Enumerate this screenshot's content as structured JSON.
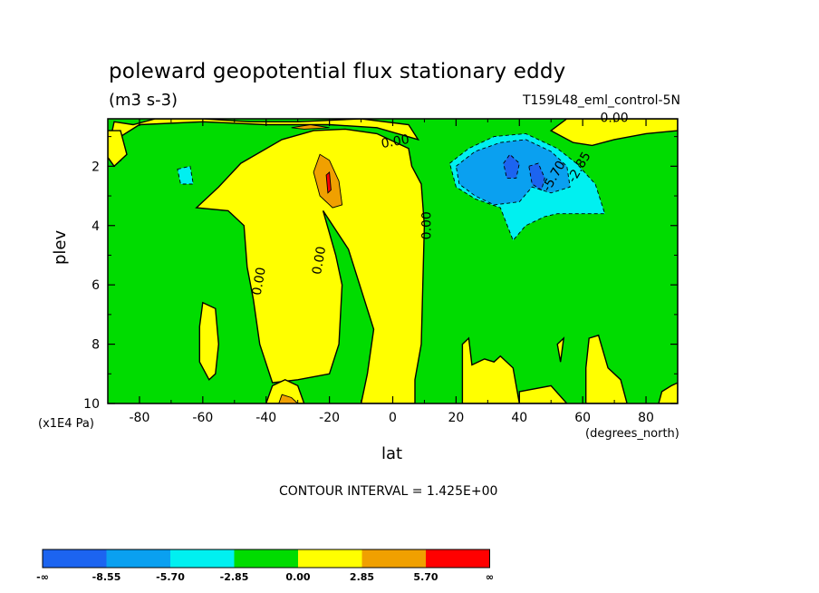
{
  "chart_data": {
    "type": "contour",
    "title": "poleward geopotential flux stationary eddy",
    "units": "(m3 s-3)",
    "dataset": "T159L48_eml_control-5N",
    "xlabel": "lat",
    "ylabel": "plev",
    "x_unit": "(degrees_north)",
    "y_unit": "(x1E4 Pa)",
    "xlim": [
      -90,
      90
    ],
    "ylim": [
      10,
      0.4
    ],
    "x_ticks": [
      -80,
      -60,
      -40,
      -20,
      0,
      20,
      40,
      60,
      80
    ],
    "x_tick_labels": [
      "-80",
      "-60",
      "-40",
      "-20",
      "0",
      "20",
      "40",
      "60",
      "80"
    ],
    "y_ticks": [
      2,
      4,
      6,
      8,
      10
    ],
    "y_tick_labels": [
      "2",
      "4",
      "6",
      "8",
      "10"
    ],
    "contour_interval_text": "CONTOUR INTERVAL = 1.425E+00",
    "contour_labels": [
      "0.00",
      "0.00",
      "0.00",
      "0.00",
      "0.00",
      "-5.70",
      "-2.85"
    ],
    "levels": [
      {
        "name": "-∞ to -8.55",
        "color": "#1c64f0"
      },
      {
        "name": "-8.55 to -5.70",
        "color": "#0aa0f0"
      },
      {
        "name": "-5.70 to -2.85",
        "color": "#00f0f0"
      },
      {
        "name": "-2.85 to 0.00",
        "color": "#00dc00"
      },
      {
        "name": "0.00 to 2.85",
        "color": "#ffff00"
      },
      {
        "name": "2.85 to 5.70",
        "color": "#f0a000"
      },
      {
        "name": "5.70 to ∞",
        "color": "#ff0000"
      }
    ],
    "colorbar_labels": [
      "-∞",
      "-8.55",
      "-5.70",
      "-2.85",
      "0.00",
      "2.85",
      "5.70",
      "∞"
    ],
    "regions": [
      {
        "level": 4,
        "points": [
          [
            -90,
            1.5
          ],
          [
            -88,
            0.5
          ],
          [
            -82,
            0.6
          ],
          [
            -75,
            0.4
          ],
          [
            -60,
            0.4
          ],
          [
            -45,
            0.5
          ],
          [
            -30,
            0.5
          ],
          [
            -10,
            0.4
          ],
          [
            5,
            0.6
          ],
          [
            8,
            1.1
          ],
          [
            -5,
            0.7
          ],
          [
            -20,
            0.6
          ],
          [
            -40,
            0.6
          ],
          [
            -60,
            0.5
          ],
          [
            -80,
            0.6
          ],
          [
            -86,
            1.0
          ],
          [
            -86,
            1.8
          ]
        ]
      },
      {
        "level": 4,
        "points": [
          [
            -62,
            3.4
          ],
          [
            -55,
            2.7
          ],
          [
            -48,
            1.9
          ],
          [
            -35,
            1.1
          ],
          [
            -25,
            0.8
          ],
          [
            -15,
            0.75
          ],
          [
            -5,
            0.9
          ],
          [
            5,
            1.4
          ],
          [
            6,
            2.0
          ],
          [
            9,
            2.6
          ],
          [
            10,
            4.0
          ],
          [
            9.5,
            6.0
          ],
          [
            9,
            8.0
          ],
          [
            7,
            9.2
          ],
          [
            7,
            10.0
          ],
          [
            -10,
            10.0
          ],
          [
            -8,
            9.0
          ],
          [
            -6,
            7.5
          ],
          [
            -14,
            4.8
          ],
          [
            -22,
            3.5
          ],
          [
            -18,
            5.0
          ],
          [
            -16,
            6.0
          ],
          [
            -17,
            8.0
          ],
          [
            -20,
            9.0
          ],
          [
            -30,
            9.2
          ],
          [
            -38,
            9.3
          ],
          [
            -42,
            8.0
          ],
          [
            -44,
            6.5
          ],
          [
            -46,
            5.4
          ],
          [
            -47,
            4.0
          ],
          [
            -52,
            3.5
          ]
        ]
      },
      {
        "level": 4,
        "points": [
          [
            -90,
            0.8
          ],
          [
            -86,
            0.8
          ],
          [
            -84,
            1.6
          ],
          [
            -88,
            2.0
          ],
          [
            -90,
            1.7
          ]
        ]
      },
      {
        "level": 4,
        "points": [
          [
            -60,
            6.6
          ],
          [
            -56,
            6.8
          ],
          [
            -55,
            8.0
          ],
          [
            -56,
            9.0
          ],
          [
            -58,
            9.2
          ],
          [
            -61,
            8.6
          ],
          [
            -61,
            7.4
          ]
        ]
      },
      {
        "level": 4,
        "points": [
          [
            -38,
            9.4
          ],
          [
            -34,
            9.2
          ],
          [
            -30,
            9.4
          ],
          [
            -28,
            10.0
          ],
          [
            -40,
            10.0
          ]
        ]
      },
      {
        "level": 4,
        "points": [
          [
            50,
            0.8
          ],
          [
            55,
            0.4
          ],
          [
            80,
            0.4
          ],
          [
            90,
            0.4
          ],
          [
            90,
            0.8
          ],
          [
            80,
            0.9
          ],
          [
            70,
            1.1
          ],
          [
            63,
            1.3
          ],
          [
            57,
            1.2
          ]
        ]
      },
      {
        "level": 4,
        "points": [
          [
            22,
            8.0
          ],
          [
            24,
            7.8
          ],
          [
            25,
            8.7
          ],
          [
            29,
            8.5
          ],
          [
            32,
            8.6
          ],
          [
            34,
            8.4
          ],
          [
            38,
            8.8
          ],
          [
            40,
            10.0
          ],
          [
            22,
            10.0
          ]
        ]
      },
      {
        "level": 4,
        "points": [
          [
            40,
            9.6
          ],
          [
            50,
            9.4
          ],
          [
            55,
            10.0
          ],
          [
            40,
            10.0
          ]
        ]
      },
      {
        "level": 4,
        "points": [
          [
            62,
            7.8
          ],
          [
            65,
            7.7
          ],
          [
            68,
            8.8
          ],
          [
            72,
            9.2
          ],
          [
            74,
            10.0
          ],
          [
            61,
            10.0
          ],
          [
            61,
            8.8
          ]
        ]
      },
      {
        "level": 4,
        "points": [
          [
            85,
            9.6
          ],
          [
            88,
            9.4
          ],
          [
            90,
            9.3
          ],
          [
            90,
            10.0
          ],
          [
            84,
            10.0
          ]
        ]
      },
      {
        "level": 4,
        "points": [
          [
            52,
            8.0
          ],
          [
            54,
            7.8
          ],
          [
            53,
            8.6
          ]
        ]
      },
      {
        "level": 5,
        "points": [
          [
            -25,
            2.2
          ],
          [
            -23,
            1.6
          ],
          [
            -20,
            1.8
          ],
          [
            -17,
            2.5
          ],
          [
            -16,
            3.3
          ],
          [
            -19,
            3.4
          ],
          [
            -23,
            3.0
          ]
        ]
      },
      {
        "level": 5,
        "points": [
          [
            -35,
            9.7
          ],
          [
            -32,
            9.8
          ],
          [
            -30,
            10.0
          ],
          [
            -36,
            10.0
          ]
        ]
      },
      {
        "level": 5,
        "points": [
          [
            -32,
            0.7
          ],
          [
            -26,
            0.6
          ],
          [
            -20,
            0.7
          ],
          [
            -28,
            0.75
          ]
        ]
      },
      {
        "level": 6,
        "points": [
          [
            -21,
            2.3
          ],
          [
            -20,
            2.2
          ],
          [
            -19.5,
            2.8
          ],
          [
            -20.5,
            2.9
          ]
        ]
      },
      {
        "level": 2,
        "points": [
          [
            -68,
            2.1
          ],
          [
            -64,
            2.0
          ],
          [
            -63,
            2.6
          ],
          [
            -67,
            2.6
          ]
        ]
      },
      {
        "level": 2,
        "points": [
          [
            18,
            1.9
          ],
          [
            24,
            1.4
          ],
          [
            32,
            1.0
          ],
          [
            42,
            0.9
          ],
          [
            52,
            1.4
          ],
          [
            58,
            1.9
          ],
          [
            64,
            2.6
          ],
          [
            67,
            3.6
          ],
          [
            60,
            3.6
          ],
          [
            52,
            3.6
          ],
          [
            48,
            3.7
          ],
          [
            42,
            4.0
          ],
          [
            38,
            4.5
          ],
          [
            34,
            3.4
          ],
          [
            26,
            3.1
          ],
          [
            20,
            2.7
          ]
        ]
      },
      {
        "level": 1,
        "points": [
          [
            20,
            2.0
          ],
          [
            26,
            1.5
          ],
          [
            34,
            1.2
          ],
          [
            42,
            1.1
          ],
          [
            50,
            1.5
          ],
          [
            55,
            2.0
          ],
          [
            56,
            2.7
          ],
          [
            50,
            2.9
          ],
          [
            44,
            2.7
          ],
          [
            40,
            3.2
          ],
          [
            32,
            3.3
          ],
          [
            26,
            3.0
          ],
          [
            21,
            2.6
          ]
        ]
      },
      {
        "level": 0,
        "points": [
          [
            35,
            1.9
          ],
          [
            37,
            1.6
          ],
          [
            40,
            1.9
          ],
          [
            39,
            2.4
          ],
          [
            36,
            2.4
          ]
        ]
      },
      {
        "level": 0,
        "points": [
          [
            43,
            2.0
          ],
          [
            46,
            1.9
          ],
          [
            48,
            2.4
          ],
          [
            47,
            2.8
          ],
          [
            44,
            2.6
          ]
        ]
      }
    ]
  }
}
